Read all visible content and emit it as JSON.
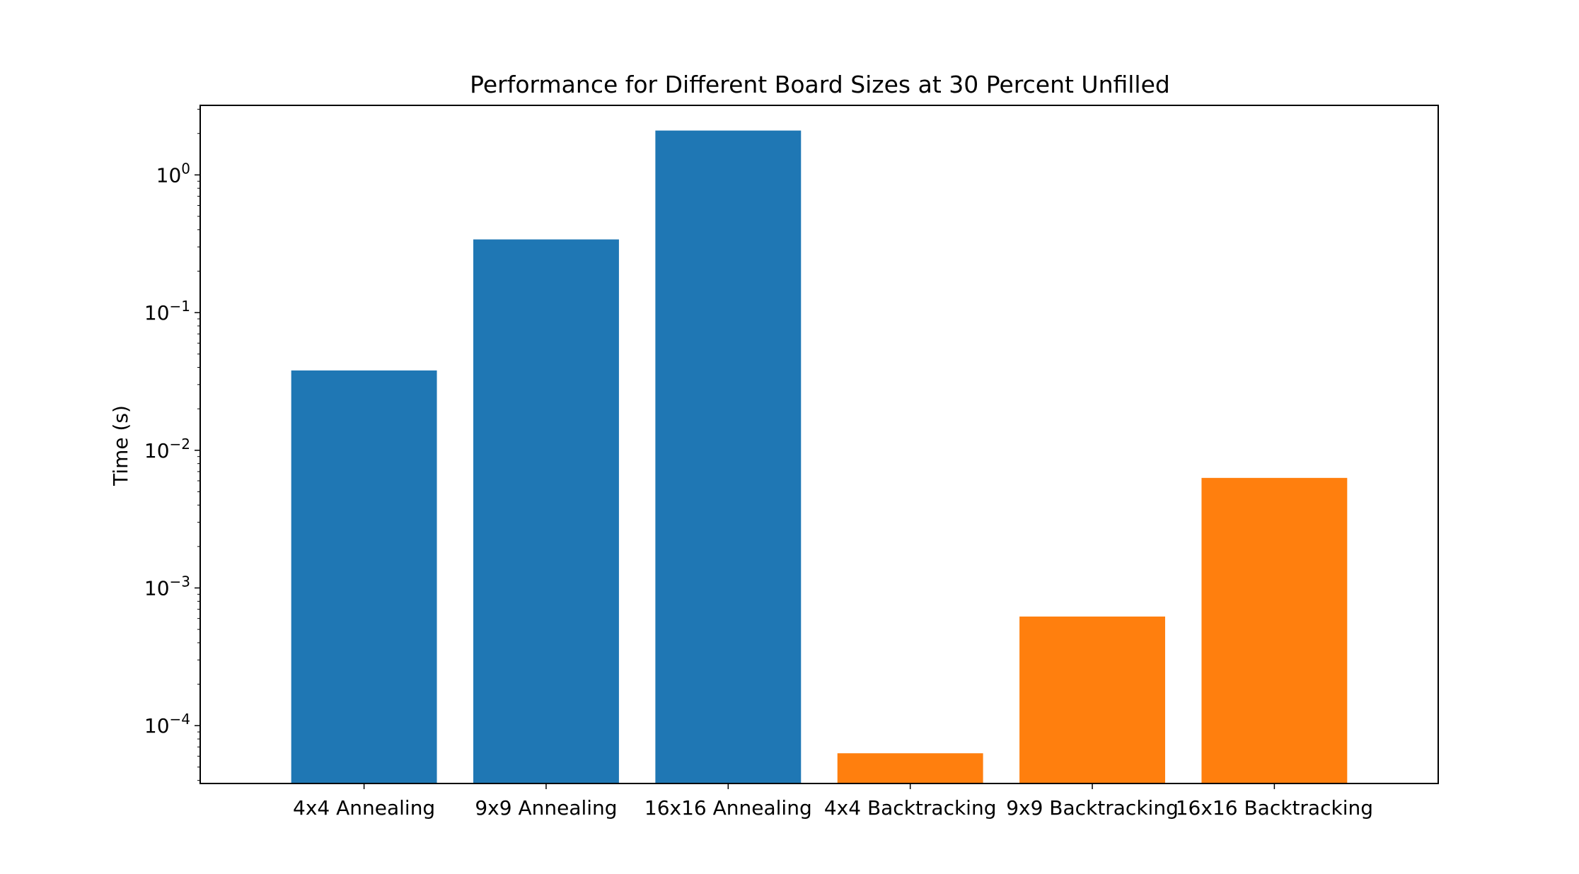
{
  "chart_data": {
    "type": "bar",
    "title": "Performance for Different Board Sizes at 30 Percent Unfilled",
    "xlabel": "",
    "ylabel": "Time (s)",
    "yscale": "log",
    "ylim": [
      3.8e-05,
      3.2
    ],
    "grid": false,
    "categories": [
      "4x4 Annealing",
      "9x9 Annealing",
      "16x16 Annealing",
      "4x4 Backtracking",
      "9x9 Backtracking",
      "16x16 Backtracking"
    ],
    "values": [
      0.038,
      0.34,
      2.1,
      6.3e-05,
      0.00062,
      0.0063
    ],
    "bar_colors": [
      "#1f77b4",
      "#1f77b4",
      "#1f77b4",
      "#ff7f0e",
      "#ff7f0e",
      "#ff7f0e"
    ],
    "y_ticks": [
      {
        "value": 0.0001,
        "base": "10",
        "exponent": "−4"
      },
      {
        "value": 0.001,
        "base": "10",
        "exponent": "−3"
      },
      {
        "value": 0.01,
        "base": "10",
        "exponent": "−2"
      },
      {
        "value": 0.1,
        "base": "10",
        "exponent": "−1"
      },
      {
        "value": 1,
        "base": "10",
        "exponent": "0"
      }
    ]
  }
}
